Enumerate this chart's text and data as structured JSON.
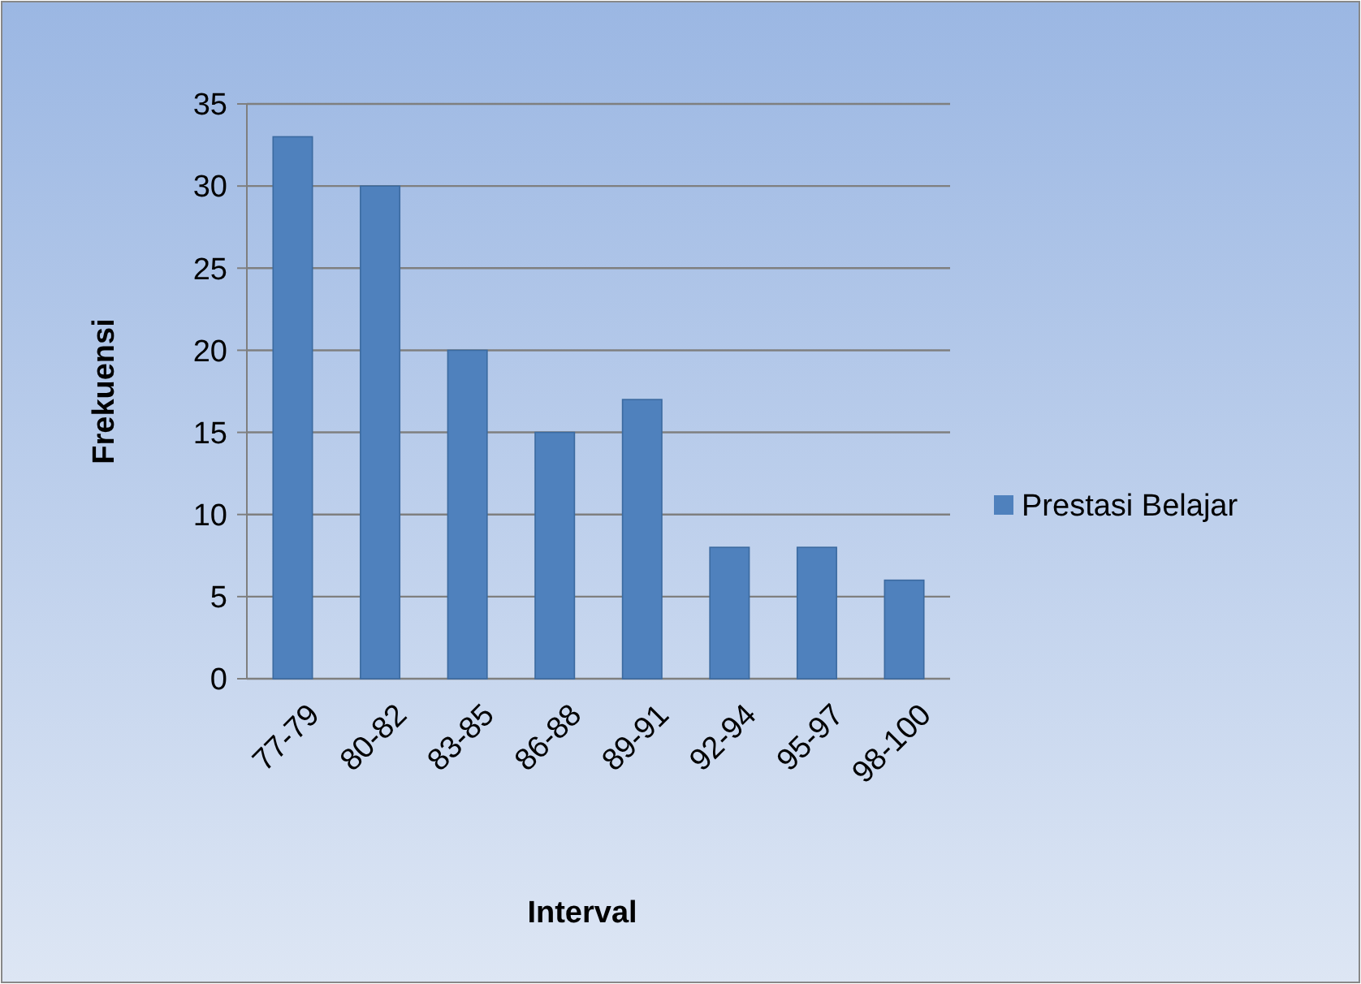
{
  "chart_data": {
    "type": "bar",
    "xlabel": "Interval",
    "ylabel": "Frekuensi",
    "categories": [
      "77-79",
      "80-82",
      "83-85",
      "86-88",
      "89-91",
      "92-94",
      "95-97",
      "98-100"
    ],
    "series": [
      {
        "name": "Prestasi Belajar",
        "color": "#4f81bd",
        "values": [
          33,
          30,
          20,
          15,
          17,
          8,
          8,
          6
        ]
      }
    ],
    "ylim": [
      0,
      35
    ],
    "yticks": [
      0,
      5,
      10,
      15,
      20,
      25,
      30,
      35
    ],
    "grid": "y",
    "legend": "right"
  }
}
